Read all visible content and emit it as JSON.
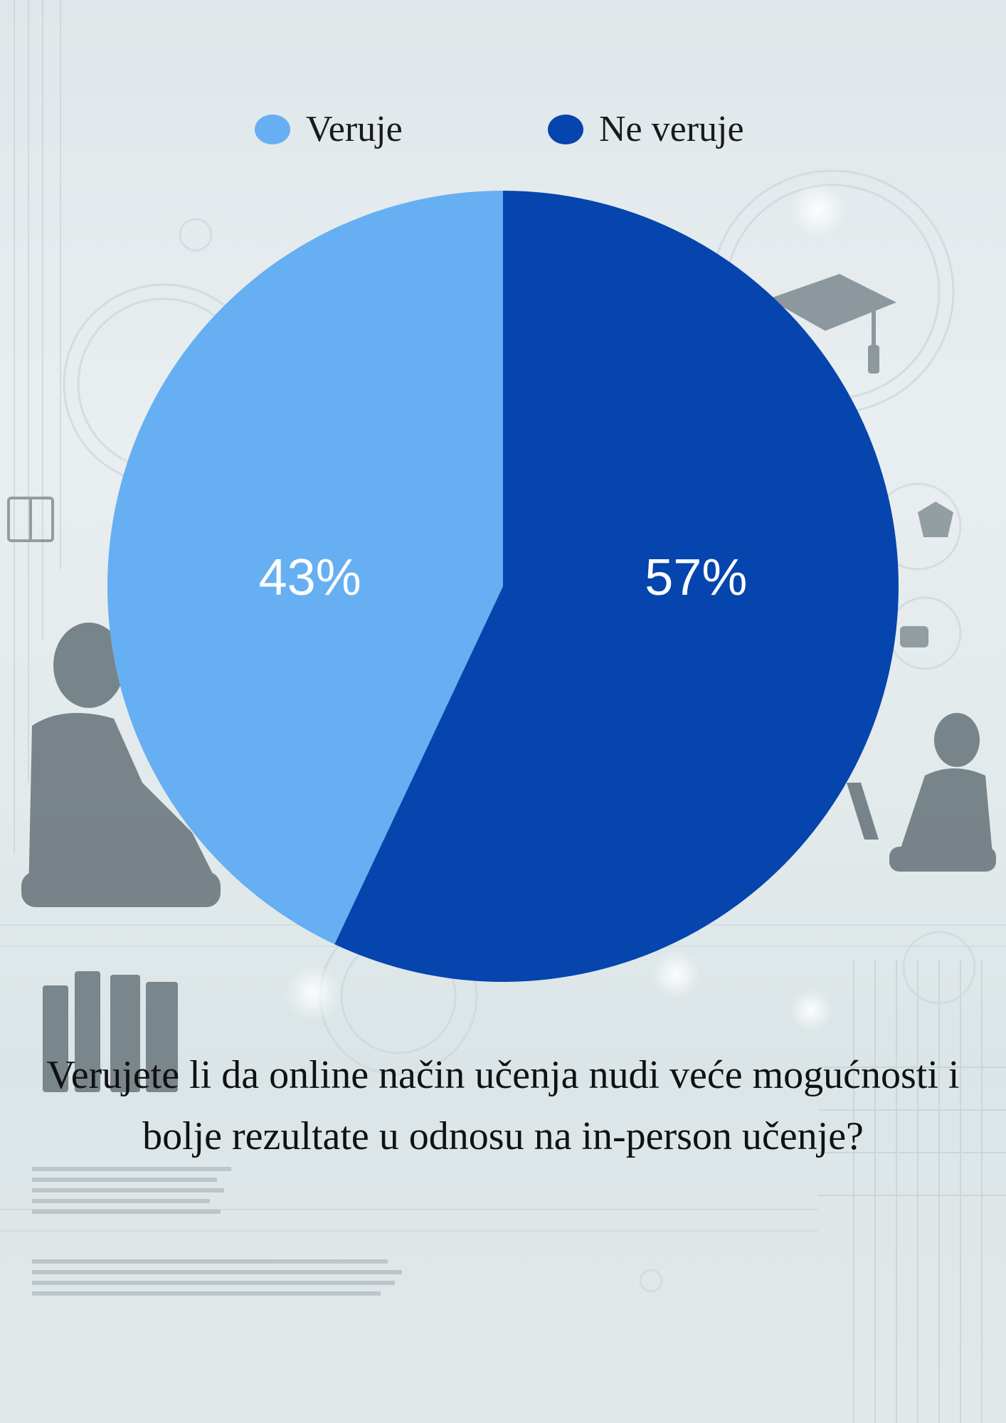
{
  "colors": {
    "veruje": "#66aff2",
    "ne_veruje": "#0644ae",
    "label_text": "#ffffff"
  },
  "legend": {
    "items": [
      {
        "label": "Veruje",
        "color": "#66aff2"
      },
      {
        "label": "Ne veruje",
        "color": "#0644ae"
      }
    ]
  },
  "question": "Verujete li da online način učenja nudi veće mogućnosti i bolje rezultate u odnosu na in-person učenje?",
  "chart_data": {
    "type": "pie",
    "title": "Verujete li da online način učenja nudi veće mogućnosti i bolje rezultate u odnosu na in-person učenje?",
    "categories": [
      "Veruje",
      "Ne veruje"
    ],
    "values": [
      43,
      57
    ],
    "labels": [
      "43%",
      "57%"
    ],
    "legend_position": "top"
  }
}
